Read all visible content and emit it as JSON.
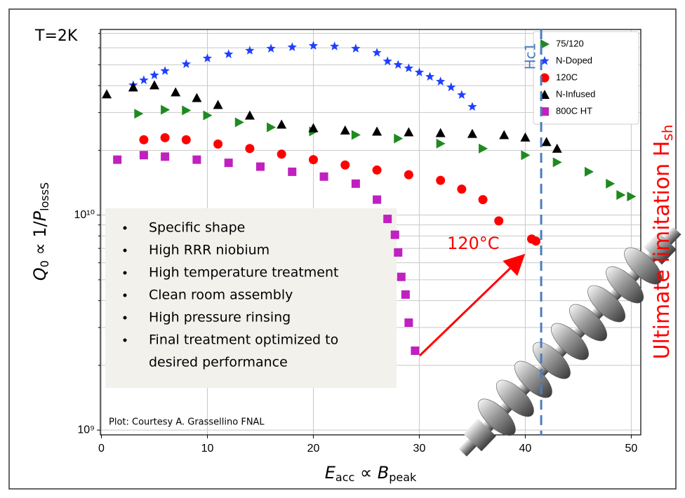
{
  "chart_data": {
    "type": "scatter",
    "temperature_label": "T=2K",
    "xlabel": [
      "E",
      "acc",
      " ∝ ",
      "B",
      "peak"
    ],
    "ylabel": [
      "Q",
      "0",
      " ∝ 1/",
      "P",
      "lossS"
    ],
    "right_label": [
      "Ultimate limitation H",
      "sh"
    ],
    "credit": "Plot: Courtesy A. Grassellino FNAL",
    "annotation": "120°C",
    "hc1": {
      "label": "Hc1",
      "x": 41.5
    },
    "bullets": [
      [
        "Specific shape"
      ],
      [
        "High RRR niobium"
      ],
      [
        "High temperature treatment"
      ],
      [
        "Clean room assembly"
      ],
      [
        "High pressure rinsing"
      ],
      [
        "Final treatment optimized to",
        "desired performance"
      ]
    ],
    "xlim": [
      -0.1,
      50.9
    ],
    "ylim": [
      950000000,
      73000000000
    ],
    "log_y": true,
    "grid": true,
    "xticks": [
      0,
      10,
      20,
      30,
      40,
      50
    ],
    "yticks": [
      {
        "value": 1000000000,
        "label": "10⁹"
      },
      {
        "value": 10000000000,
        "label": "10¹⁰"
      }
    ],
    "yminorticks": [
      2000000000,
      3000000000,
      4000000000,
      5000000000,
      6000000000,
      7000000000,
      8000000000,
      9000000000,
      20000000000,
      30000000000,
      40000000000,
      50000000000,
      60000000000,
      70000000000
    ],
    "legend": "upper right",
    "series": [
      {
        "name": "75/120",
        "color": "#1f8a1f",
        "marker": "triangle-right",
        "x": [
          3.5,
          6,
          8,
          10,
          13,
          16,
          20,
          24,
          28,
          32,
          36,
          40,
          43,
          46,
          48,
          49,
          50
        ],
        "values": [
          29600000000,
          30900000000,
          30700000000,
          29100000000,
          27000000000,
          25600000000,
          24500000000,
          23600000000,
          22700000000,
          21500000000,
          20400000000,
          19000000000,
          17600000000,
          15900000000,
          14000000000,
          12400000000,
          12200000000
        ]
      },
      {
        "name": "N-Doped",
        "color": "#1f3fff",
        "marker": "star",
        "x": [
          3,
          4,
          5,
          6,
          8,
          10,
          12,
          14,
          16,
          18,
          20,
          22,
          24,
          26,
          27,
          28,
          29,
          30,
          31,
          32,
          33,
          34,
          35
        ],
        "values": [
          40200000000,
          42400000000,
          44700000000,
          46800000000,
          50400000000,
          53600000000,
          56000000000,
          58200000000,
          59500000000,
          60400000000,
          61300000000,
          60900000000,
          59500000000,
          56900000000,
          51900000000,
          50000000000,
          48200000000,
          46100000000,
          44000000000,
          41800000000,
          39300000000,
          36200000000,
          31900000000
        ]
      },
      {
        "name": "120C",
        "color": "#ff0000",
        "marker": "circle",
        "x": [
          4,
          6,
          8,
          11,
          14,
          17,
          20,
          23,
          26,
          29,
          32,
          34,
          36,
          37.5,
          40.6,
          41
        ],
        "values": [
          22400000000,
          22900000000,
          22400000000,
          21400000000,
          20400000000,
          19200000000,
          18100000000,
          17100000000,
          16200000000,
          15400000000,
          14500000000,
          13200000000,
          11800000000,
          9400000000,
          7740000000,
          7570000000
        ]
      },
      {
        "name": "N-Infused",
        "color": "#000000",
        "marker": "triangle-up",
        "x": [
          0.5,
          3,
          5,
          7,
          9,
          11,
          14,
          17,
          20,
          23,
          26,
          29,
          32,
          35,
          38,
          40,
          42,
          43
        ],
        "values": [
          36500000000,
          39300000000,
          40200000000,
          37300000000,
          35100000000,
          32600000000,
          29100000000,
          26400000000,
          25400000000,
          24800000000,
          24500000000,
          24300000000,
          24100000000,
          23900000000,
          23600000000,
          23000000000,
          21900000000,
          20400000000
        ]
      },
      {
        "name": "800C HT",
        "color": "#c020c0",
        "marker": "square",
        "x": [
          1.5,
          4,
          6,
          9,
          12,
          15,
          18,
          21,
          24,
          26,
          27,
          27.7,
          28,
          28.3,
          28.7,
          29,
          29.6
        ],
        "values": [
          18100000000,
          19000000000,
          18700000000,
          18100000000,
          17500000000,
          16800000000,
          15900000000,
          15100000000,
          14000000000,
          11800000000,
          9600000000,
          8100000000,
          6700000000,
          5160000000,
          4270000000,
          3160000000,
          2340000000
        ]
      }
    ]
  }
}
